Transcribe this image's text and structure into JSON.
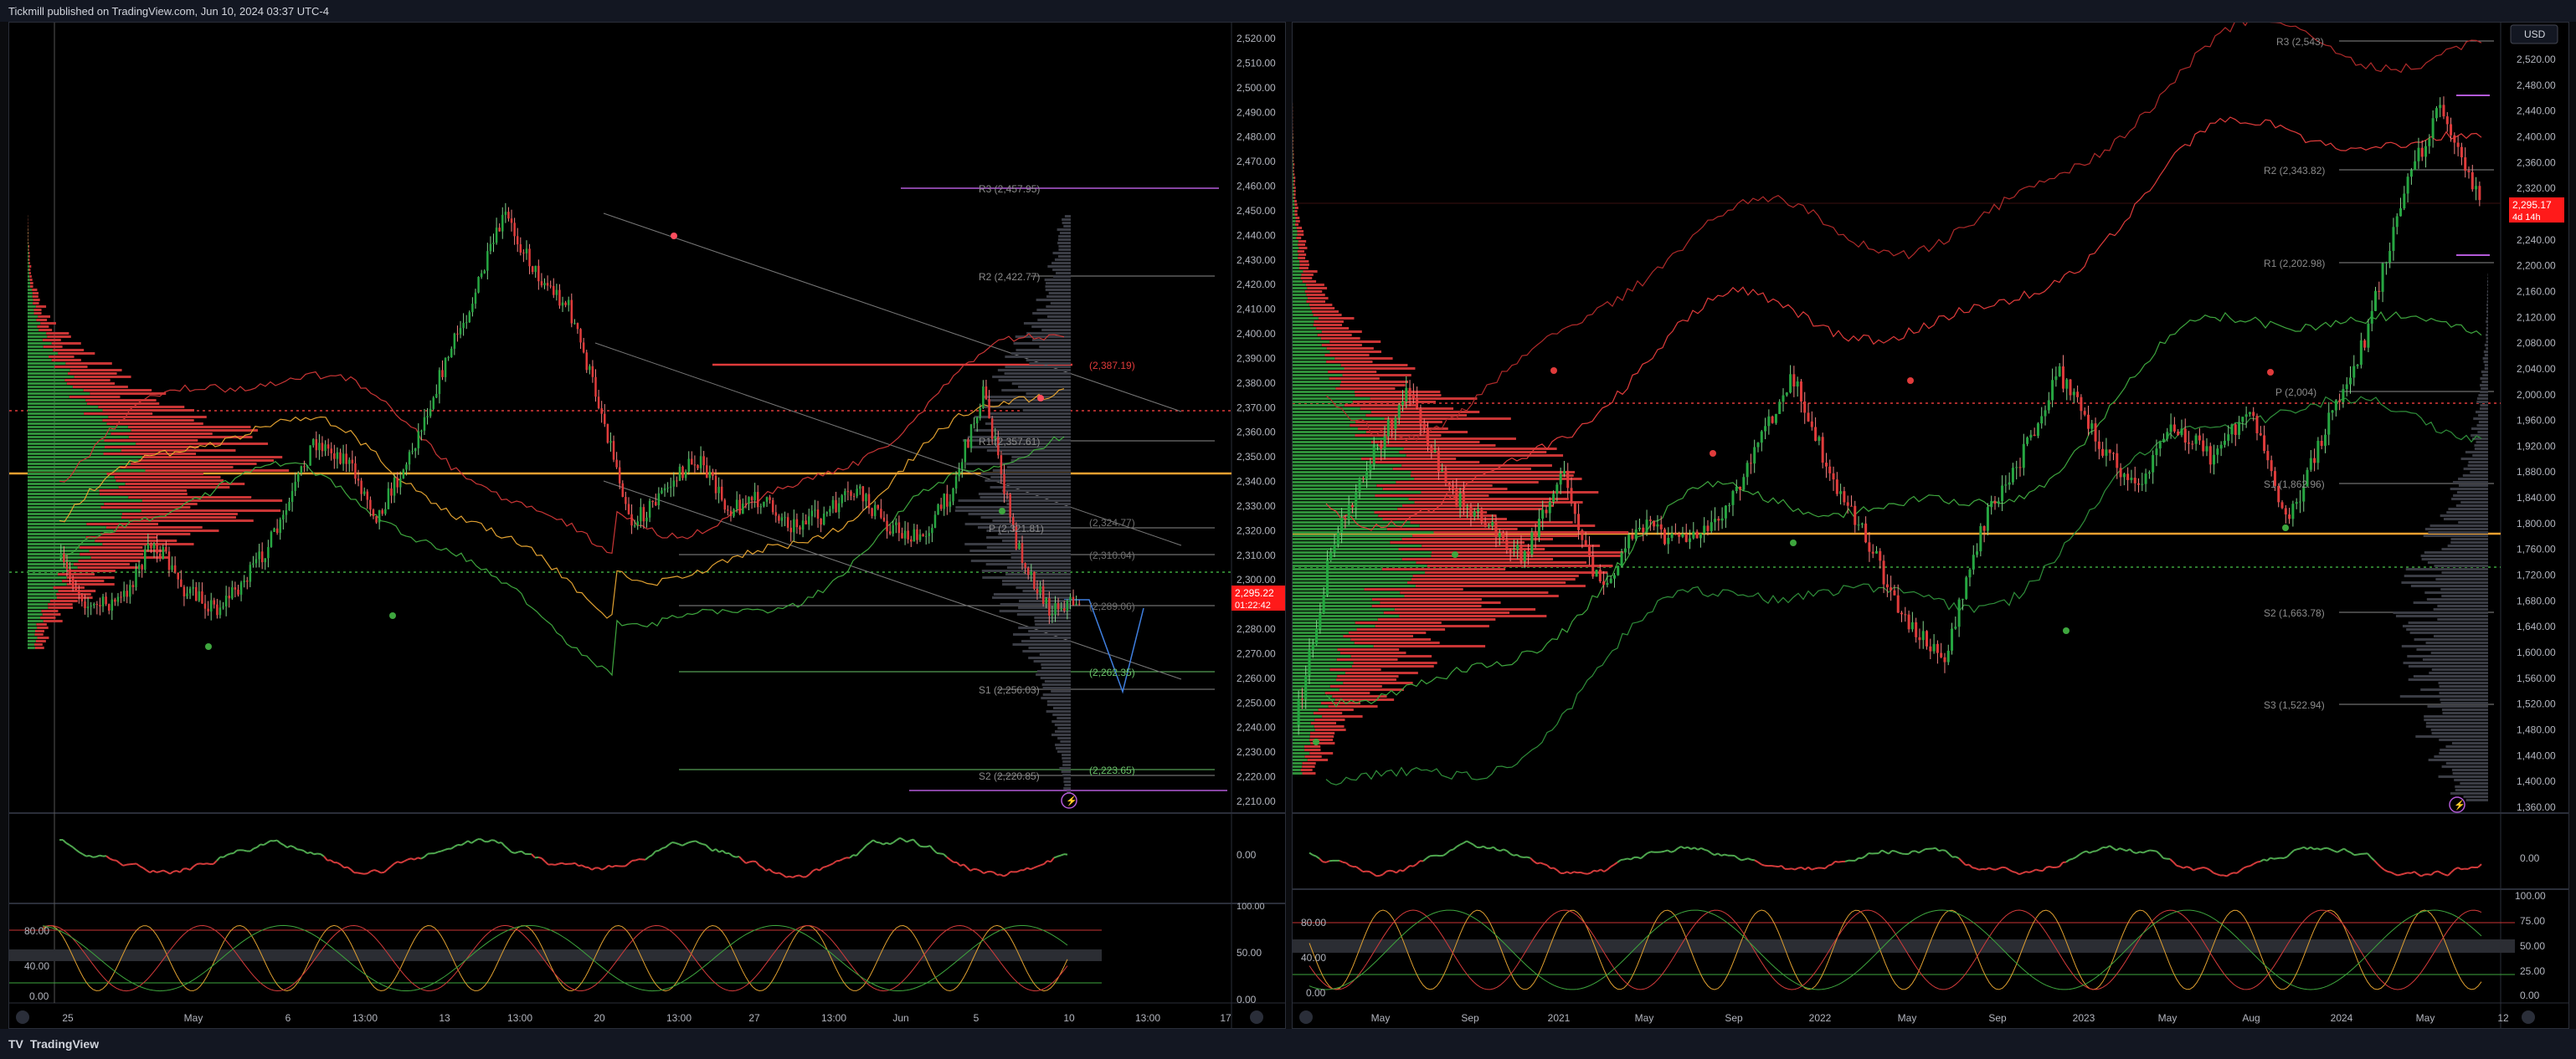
{
  "header": {
    "published_text": "Tickmill published on TradingView.com, Jun 10, 2024 03:37 UTC-4"
  },
  "footer": {
    "brand": "TradingView",
    "logo_glyph": "TV"
  },
  "colors": {
    "bg": "#000000",
    "up": "#26a641",
    "down": "#e03b3b",
    "pivot_line": "#8a8a8a",
    "r3_line": "#b35ad8",
    "orange": "#f0a030",
    "price_tag": "#ff1a1a",
    "green_line": "#6ac36a",
    "blue_path": "#3f7fe0"
  },
  "left": {
    "price_axis_labels": [
      "2,520.00",
      "2,510.00",
      "2,500.00",
      "2,490.00",
      "2,480.00",
      "2,470.00",
      "2,460.00",
      "2,450.00",
      "2,440.00",
      "2,430.00",
      "2,420.00",
      "2,410.00",
      "2,400.00",
      "2,390.00",
      "2,380.00",
      "2,370.00",
      "2,360.00",
      "2,350.00",
      "2,340.00",
      "2,330.00",
      "2,320.00",
      "2,310.00",
      "2,300.00",
      "2,290.00",
      "2,280.00",
      "2,270.00",
      "2,260.00",
      "2,250.00",
      "2,240.00",
      "2,230.00",
      "2,220.00",
      "2,210.00"
    ],
    "price_tag_value": "2,295.22",
    "price_tag_time": "01:22:42",
    "pivot_labels": {
      "r3": "R3 (2,457.95)",
      "r2": "R2 (2,422.77)",
      "r1": "R1 (2,357.61)",
      "p": "P (2,321.81)",
      "s1": "S1 (2,256.03)",
      "s2": "S2 (2,220.85)",
      "red_level": "(2,387.19)",
      "g1": "(2,324.77)",
      "g2": "(2,310.04)",
      "g3": "(2,289.06)",
      "g4": "(2,262.35)",
      "g5": "(2,223.65)"
    },
    "time_axis_labels": [
      "25",
      "May",
      "6",
      "13:00",
      "13",
      "13:00",
      "20",
      "13:00",
      "27",
      "13:00",
      "Jun",
      "5",
      "10",
      "13:00",
      "17"
    ],
    "osc_labels": [
      "0.00"
    ],
    "stoch_labels": [
      "100.00",
      "80.00",
      "50.00",
      "40.00",
      "0.00",
      "0.00"
    ]
  },
  "right": {
    "currency_button": "USD",
    "price_axis_labels": [
      "2,520.00",
      "2,480.00",
      "2,440.00",
      "2,400.00",
      "2,360.00",
      "2,320.00",
      "2,280.00",
      "2,240.00",
      "2,200.00",
      "2,160.00",
      "2,120.00",
      "2,080.00",
      "2,040.00",
      "2,000.00",
      "1,960.00",
      "1,920.00",
      "1,880.00",
      "1,840.00",
      "1,800.00",
      "1,760.00",
      "1,720.00",
      "1,680.00",
      "1,640.00",
      "1,600.00",
      "1,560.00",
      "1,520.00",
      "1,480.00",
      "1,440.00",
      "1,400.00",
      "1,360.00"
    ],
    "price_tag_value": "2,295.17",
    "price_tag_time": "4d 14h",
    "pivot_labels": {
      "r3": "R3 (2,543)",
      "r2": "R2 (2,343.82)",
      "r1": "R1 (2,202.98)",
      "p": "P (2,004)",
      "s1": "S1 (1,862.96)",
      "s2": "S2 (1,663.78)",
      "s3": "S3 (1,522.94)"
    },
    "time_axis_labels": [
      "May",
      "Sep",
      "2021",
      "May",
      "Sep",
      "2022",
      "May",
      "Sep",
      "2023",
      "May",
      "Aug",
      "2024",
      "May",
      "12"
    ],
    "osc_labels": [
      "0.00"
    ],
    "stoch_labels": [
      "100.00",
      "80.00",
      "75.00",
      "50.00",
      "40.00",
      "25.00",
      "0.00",
      "0.00"
    ]
  }
}
